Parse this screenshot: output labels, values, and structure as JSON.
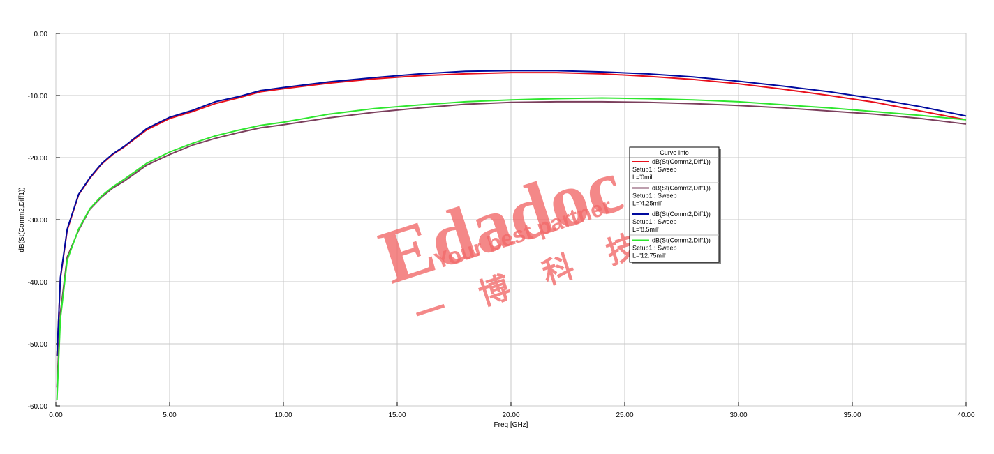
{
  "chart_data": {
    "type": "line",
    "x_label": "Freq [GHz]",
    "y_label": "dB(St(Comm2,Diff1))",
    "legend_title": "Curve Info",
    "legend": "right",
    "watermark": {
      "brand": "Edadoc",
      "slogan": "Your best partner",
      "chinese": "一博科技"
    },
    "xlim": [
      0,
      40
    ],
    "ylim": [
      -60,
      0
    ],
    "grid": true,
    "xticks": [
      {
        "value": 0,
        "label": "0.00"
      },
      {
        "value": 5,
        "label": "5.00"
      },
      {
        "value": 10,
        "label": "10.00"
      },
      {
        "value": 15,
        "label": "15.00"
      },
      {
        "value": 20,
        "label": "20.00"
      },
      {
        "value": 25,
        "label": "25.00"
      },
      {
        "value": 30,
        "label": "30.00"
      },
      {
        "value": 35,
        "label": "35.00"
      },
      {
        "value": 40,
        "label": "40.00"
      }
    ],
    "yticks": [
      {
        "value": 0,
        "label": "0.00"
      },
      {
        "value": -10,
        "label": "-10.00"
      },
      {
        "value": -20,
        "label": "-20.00"
      },
      {
        "value": -30,
        "label": "-30.00"
      },
      {
        "value": -40,
        "label": "-40.00"
      },
      {
        "value": -50,
        "label": "-50.00"
      },
      {
        "value": -60,
        "label": "-60.00"
      }
    ],
    "x": [
      0.05,
      0.2,
      0.5,
      1,
      1.5,
      2,
      2.5,
      3,
      4,
      5,
      6,
      7,
      8,
      9,
      10,
      12,
      14,
      16,
      18,
      20,
      22,
      24,
      26,
      28,
      30,
      32,
      34,
      36,
      38,
      40
    ],
    "series": [
      {
        "name": "dB(St(Comm2,Diff1))",
        "setup": "Setup1 : Sweep",
        "param": "L='0mil'",
        "color": "#e8101c",
        "values": [
          -52,
          -39.5,
          -31.7,
          -26,
          -23.3,
          -21.1,
          -19.5,
          -18.3,
          -15.5,
          -13.7,
          -12.6,
          -11.3,
          -10.4,
          -9.4,
          -8.9,
          -8.0,
          -7.3,
          -6.8,
          -6.5,
          -6.3,
          -6.3,
          -6.5,
          -6.9,
          -7.4,
          -8.1,
          -9.0,
          -10.0,
          -11.1,
          -12.5,
          -13.9
        ]
      },
      {
        "name": "dB(St(Comm2,Diff1))",
        "setup": "Setup1 : Sweep",
        "param": "L='4.25mil'",
        "color": "#7b3f5c",
        "values": [
          -57,
          -45,
          -36,
          -31.7,
          -28.3,
          -26.4,
          -24.9,
          -23.8,
          -21.2,
          -19.5,
          -18.0,
          -16.9,
          -16.0,
          -15.2,
          -14.7,
          -13.6,
          -12.7,
          -12.0,
          -11.4,
          -11.1,
          -11.0,
          -11.0,
          -11.1,
          -11.3,
          -11.6,
          -12.0,
          -12.5,
          -13.0,
          -13.7,
          -14.6
        ]
      },
      {
        "name": "dB(St(Comm2,Diff1))",
        "setup": "Setup1 : Sweep",
        "param": "L='8.5mil'",
        "color": "#000a9e",
        "values": [
          -52,
          -39.3,
          -31.5,
          -25.9,
          -23.2,
          -21.0,
          -19.4,
          -18.2,
          -15.3,
          -13.5,
          -12.4,
          -11.0,
          -10.2,
          -9.2,
          -8.7,
          -7.8,
          -7.1,
          -6.5,
          -6.1,
          -6.0,
          -6.0,
          -6.2,
          -6.5,
          -7.0,
          -7.7,
          -8.5,
          -9.4,
          -10.5,
          -11.8,
          -13.3
        ]
      },
      {
        "name": "dB(St(Comm2,Diff1))",
        "setup": "Setup1 : Sweep",
        "param": "L='12.75mil'",
        "color": "#2ee62e",
        "values": [
          -59,
          -46,
          -36.5,
          -31.5,
          -28.2,
          -26.2,
          -24.7,
          -23.5,
          -20.9,
          -19.1,
          -17.7,
          -16.5,
          -15.6,
          -14.8,
          -14.3,
          -13.0,
          -12.1,
          -11.5,
          -11.0,
          -10.7,
          -10.5,
          -10.4,
          -10.5,
          -10.7,
          -11.0,
          -11.5,
          -12.0,
          -12.6,
          -13.2,
          -13.9
        ]
      }
    ]
  }
}
